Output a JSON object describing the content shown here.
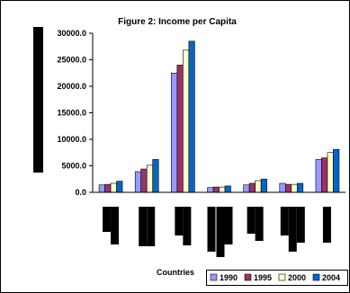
{
  "chart_data": {
    "type": "bar",
    "title": "Figure 2: Income per Capita",
    "xlabel": "Countries",
    "ylabel": "",
    "ylim": [
      0,
      30000
    ],
    "yticks": [
      0,
      5000,
      10000,
      15000,
      20000,
      25000,
      30000
    ],
    "ytick_labels": [
      "0.0",
      "5000.0",
      "10000.0",
      "15000.0",
      "20000.0",
      "25000.0",
      "30000.0"
    ],
    "grid": false,
    "legend_position": "bottom-right",
    "category_labels_redacted": true,
    "categories": [
      "",
      "",
      "",
      "",
      "",
      "",
      ""
    ],
    "series": [
      {
        "name": "1990",
        "color": "#9999ff",
        "values": [
          1400,
          3900,
          22500,
          900,
          1400,
          1700,
          6200
        ]
      },
      {
        "name": "1995",
        "color": "#993366",
        "values": [
          1500,
          4400,
          24000,
          1000,
          1700,
          1500,
          6500
        ]
      },
      {
        "name": "2000",
        "color": "#ffffcc",
        "values": [
          1700,
          5100,
          26800,
          1000,
          2200,
          1500,
          7500
        ]
      },
      {
        "name": "2004",
        "color": "#0066cc",
        "values": [
          2100,
          6200,
          28500,
          1200,
          2500,
          1700,
          8100
        ]
      }
    ]
  }
}
